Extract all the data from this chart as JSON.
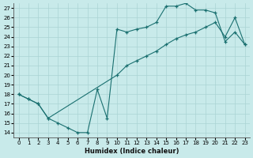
{
  "xlabel": "Humidex (Indice chaleur)",
  "ylabel": "",
  "xlim": [
    -0.5,
    23.5
  ],
  "ylim": [
    13.5,
    27.5
  ],
  "xticks": [
    0,
    1,
    2,
    3,
    4,
    5,
    6,
    7,
    8,
    9,
    10,
    11,
    12,
    13,
    14,
    15,
    16,
    17,
    18,
    19,
    20,
    21,
    22,
    23
  ],
  "yticks": [
    14,
    15,
    16,
    17,
    18,
    19,
    20,
    21,
    22,
    23,
    24,
    25,
    26,
    27
  ],
  "bg_color": "#c8eaea",
  "grid_color": "#aad4d4",
  "line_color": "#1a7070",
  "line1_x": [
    0,
    1,
    2,
    3,
    4,
    5,
    6,
    7,
    8,
    9,
    10,
    11,
    12,
    13,
    14,
    15,
    16,
    17,
    18,
    19,
    20,
    21,
    22,
    23
  ],
  "line1_y": [
    18.0,
    17.5,
    17.0,
    15.5,
    15.0,
    14.5,
    14.0,
    14.0,
    18.5,
    15.5,
    24.8,
    24.5,
    24.8,
    25.0,
    25.5,
    27.2,
    27.2,
    27.5,
    26.8,
    26.8,
    26.5,
    23.5,
    24.5,
    23.2
  ],
  "line2_x": [
    0,
    1,
    2,
    3,
    10,
    11,
    12,
    13,
    14,
    15,
    16,
    17,
    18,
    19,
    20,
    21,
    22,
    23
  ],
  "line2_y": [
    18.0,
    17.5,
    17.0,
    15.5,
    20.0,
    21.0,
    21.5,
    22.0,
    22.5,
    23.2,
    23.8,
    24.2,
    24.5,
    25.0,
    25.5,
    24.0,
    26.0,
    23.2
  ]
}
